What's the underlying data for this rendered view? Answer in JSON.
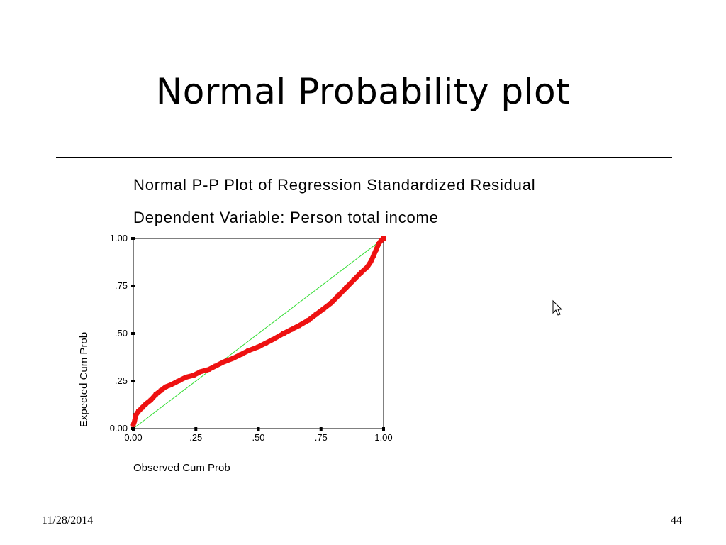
{
  "slide": {
    "title": "Normal Probability plot",
    "footer_date": "11/28/2014",
    "footer_page": "44"
  },
  "chart_data": {
    "type": "scatter",
    "title": "Normal P-P Plot of Regression Standardized Residual",
    "subtitle": "Dependent Variable: Person total income",
    "xlabel": "Observed Cum Prob",
    "ylabel": "Expected Cum Prob",
    "xlim": [
      0,
      1
    ],
    "ylim": [
      0,
      1
    ],
    "xticks": [
      "0.00",
      ".25",
      ".50",
      ".75",
      "1.00"
    ],
    "yticks": [
      "0.00",
      ".25",
      ".50",
      ".75",
      "1.00"
    ],
    "grid": false,
    "series": [
      {
        "role": "points",
        "color": "#ee1111",
        "x": [
          0.0,
          0.005,
          0.01,
          0.02,
          0.035,
          0.05,
          0.07,
          0.09,
          0.11,
          0.13,
          0.15,
          0.18,
          0.21,
          0.24,
          0.27,
          0.3,
          0.33,
          0.36,
          0.4,
          0.43,
          0.46,
          0.5,
          0.53,
          0.56,
          0.6,
          0.63,
          0.66,
          0.7,
          0.73,
          0.76,
          0.79,
          0.82,
          0.85,
          0.88,
          0.91,
          0.935,
          0.95,
          0.96,
          0.97,
          0.98,
          0.99,
          1.0
        ],
        "y": [
          0.02,
          0.04,
          0.07,
          0.09,
          0.11,
          0.13,
          0.15,
          0.18,
          0.2,
          0.22,
          0.23,
          0.25,
          0.27,
          0.28,
          0.3,
          0.31,
          0.33,
          0.35,
          0.37,
          0.39,
          0.41,
          0.43,
          0.45,
          0.47,
          0.5,
          0.52,
          0.54,
          0.57,
          0.6,
          0.63,
          0.66,
          0.7,
          0.74,
          0.78,
          0.82,
          0.85,
          0.88,
          0.91,
          0.94,
          0.97,
          0.99,
          1.0
        ]
      },
      {
        "role": "reference-line",
        "color": "#33dd33",
        "x": [
          0,
          1
        ],
        "y": [
          0,
          1
        ]
      }
    ]
  },
  "cursor": {
    "icon": "arrow-cursor-icon"
  }
}
